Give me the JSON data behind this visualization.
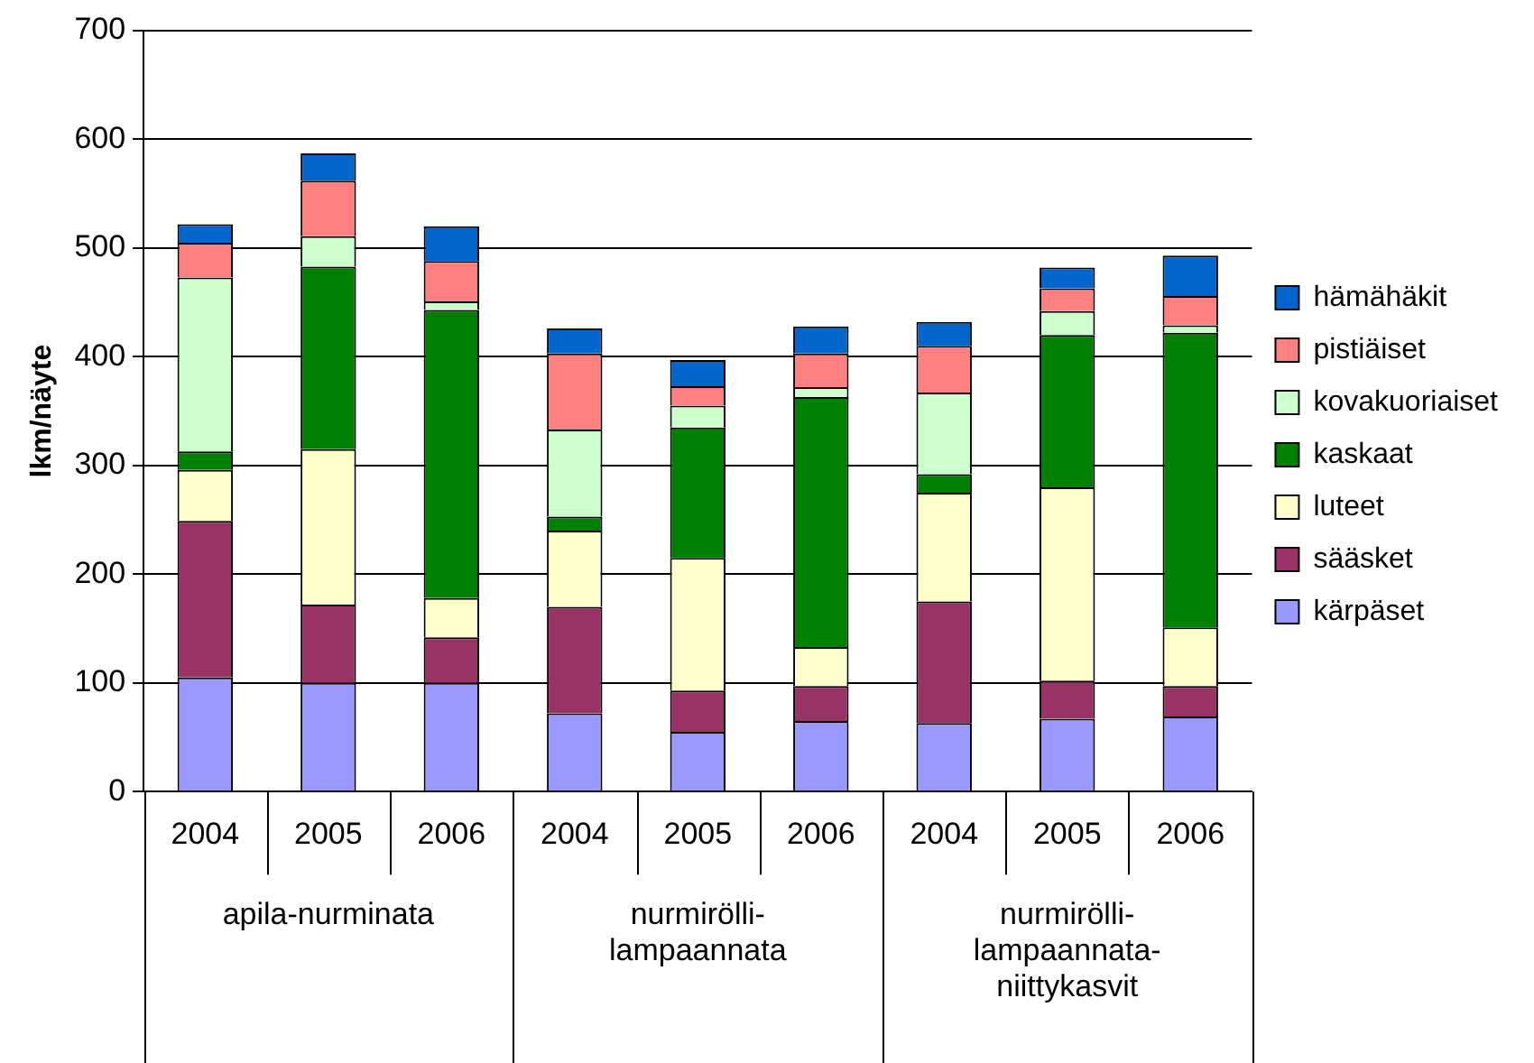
{
  "chart_data": {
    "type": "bar",
    "stacked": true,
    "ylabel": "lkm/näyte",
    "categories": [
      "2004",
      "2005",
      "2006",
      "2004",
      "2005",
      "2006",
      "2004",
      "2005",
      "2006"
    ],
    "annotations": [
      "apila-nurminata",
      "nurmirölli-\nlampaannata",
      "nurmirölli-\nlampaannata-\nniittykasvit"
    ],
    "ylim": [
      0,
      700
    ],
    "yticks": [
      0,
      100,
      200,
      300,
      400,
      500,
      600,
      700
    ],
    "grid": "y",
    "legend": "right",
    "series": [
      {
        "name": "kärpäset",
        "color": "#9999ff",
        "values": [
          105,
          100,
          100,
          72,
          55,
          65,
          63,
          67,
          69
        ]
      },
      {
        "name": "sääsket",
        "color": "#993366",
        "values": [
          144,
          72,
          42,
          98,
          38,
          32,
          112,
          35,
          28
        ]
      },
      {
        "name": "luteet",
        "color": "#ffffcc",
        "values": [
          47,
          143,
          36,
          70,
          122,
          36,
          100,
          178,
          54
        ]
      },
      {
        "name": "kaskaat",
        "color": "#008000",
        "values": [
          17,
          168,
          265,
          13,
          120,
          230,
          17,
          140,
          271
        ]
      },
      {
        "name": "kovakuoriaiset",
        "color": "#ccffcc",
        "values": [
          160,
          28,
          8,
          80,
          20,
          9,
          75,
          22,
          7
        ]
      },
      {
        "name": "pistiäiset",
        "color": "#ff8080",
        "values": [
          32,
          51,
          37,
          70,
          18,
          31,
          43,
          21,
          27
        ]
      },
      {
        "name": "hämähäkit",
        "color": "#0066cc",
        "values": [
          17,
          25,
          32,
          23,
          24,
          25,
          22,
          19,
          37
        ]
      }
    ]
  }
}
